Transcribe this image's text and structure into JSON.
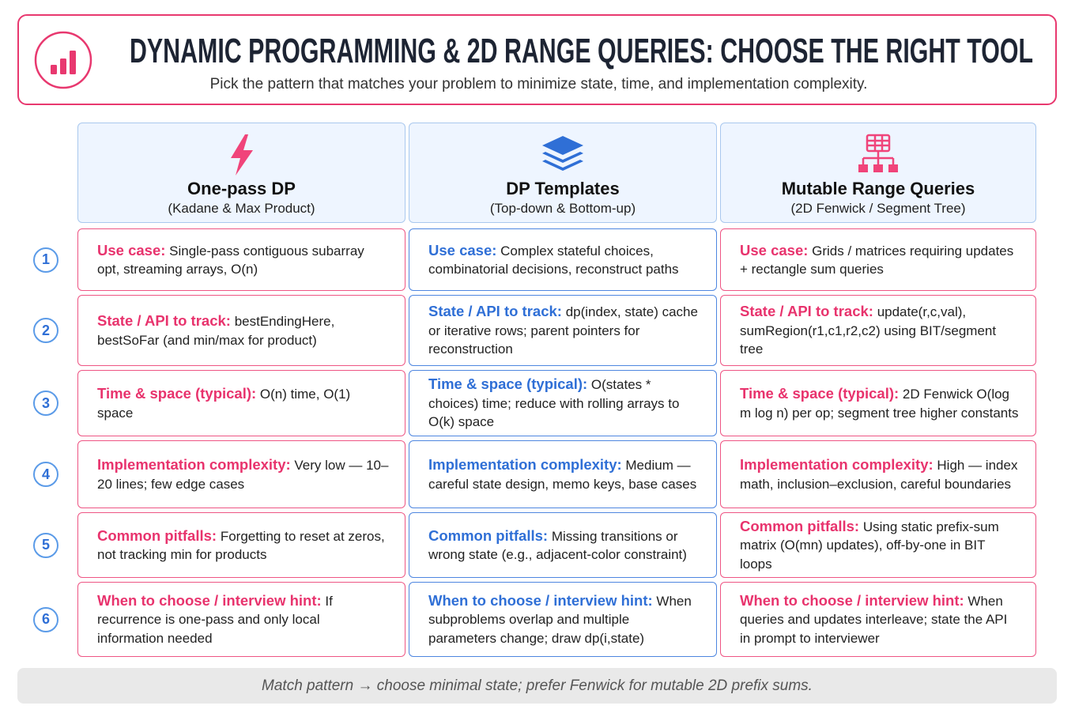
{
  "header": {
    "title": "DYNAMIC PROGRAMMING & 2D RANGE QUERIES: CHOOSE THE RIGHT TOOL",
    "subtitle": "Pick the pattern that matches your problem to minimize state, time, and implementation complexity."
  },
  "columns": [
    {
      "title": "One-pass DP",
      "subtitle": "(Kadane & Max Product)"
    },
    {
      "title": "DP Templates",
      "subtitle": "(Top-down & Bottom-up)"
    },
    {
      "title": "Mutable Range Queries",
      "subtitle": "(2D Fenwick / Segment Tree)"
    }
  ],
  "rows": [
    {
      "number": 1,
      "cells": [
        {
          "label": "Use case:",
          "text": "Single-pass contiguous subarray opt, streaming arrays, O(n)"
        },
        {
          "label": "Use case:",
          "text": "Complex stateful choices, combinatorial decisions, reconstruct paths"
        },
        {
          "label": "Use case:",
          "text": "Grids / matrices requiring updates + rectangle sum queries"
        }
      ]
    },
    {
      "number": 2,
      "cells": [
        {
          "label": "State / API to track:",
          "text": "bestEndingHere, bestSoFar (and min/max for product)"
        },
        {
          "label": "State / API to track:",
          "text": "dp(index, state) cache or iterative rows; parent pointers for reconstruction"
        },
        {
          "label": "State / API to track:",
          "text": "update(r,c,val), sumRegion(r1,c1,r2,c2) using BIT/segment tree"
        }
      ]
    },
    {
      "number": 3,
      "cells": [
        {
          "label": "Time & space (typical):",
          "text": "O(n) time, O(1) space"
        },
        {
          "label": "Time & space (typical):",
          "text": "O(states * choices) time; reduce with rolling arrays to O(k) space"
        },
        {
          "label": "Time & space (typical):",
          "text": "2D Fenwick O(log m log n) per op; segment tree higher constants"
        }
      ]
    },
    {
      "number": 4,
      "cells": [
        {
          "label": "Implementation complexity:",
          "text": "Very low — 10–20 lines; few edge cases"
        },
        {
          "label": "Implementation complexity:",
          "text": "Medium — careful state design, memo keys, base cases"
        },
        {
          "label": "Implementation complexity:",
          "text": "High — index math, inclusion–exclusion, careful boundaries"
        }
      ]
    },
    {
      "number": 5,
      "cells": [
        {
          "label": "Common pitfalls:",
          "text": "Forgetting to reset at zeros, not tracking min for products"
        },
        {
          "label": "Common pitfalls:",
          "text": "Missing transitions or wrong state (e.g., adjacent-color constraint)"
        },
        {
          "label": "Common pitfalls:",
          "text": "Using static prefix-sum matrix (O(mn) updates), off-by-one in BIT loops"
        }
      ]
    },
    {
      "number": 6,
      "cells": [
        {
          "label": "When to choose / interview hint:",
          "text": "If recurrence is one-pass and only local information needed"
        },
        {
          "label": "When to choose / interview hint:",
          "text": "When subproblems overlap and multiple parameters change; draw dp(i,state)"
        },
        {
          "label": "When to choose / interview hint:",
          "text": "When queries and updates interleave; state the API in prompt to interviewer"
        }
      ]
    }
  ],
  "footer": {
    "text": "Match pattern → choose minimal state; prefer Fenwick for mutable 2D prefix sums."
  }
}
